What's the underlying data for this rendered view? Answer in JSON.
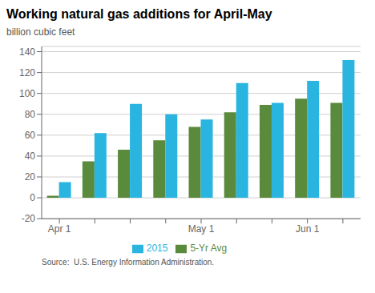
{
  "chart_data": {
    "type": "bar",
    "title": "Working natural gas additions for April-May",
    "ylabel": "billion cubic feet",
    "annotations": [
      "Source:  U.S. Energy Information Administration."
    ],
    "categories": [
      "Apr 1",
      null,
      null,
      null,
      "May 1",
      null,
      null,
      "Jun 1",
      null
    ],
    "series": [
      {
        "name": "5-Yr Avg",
        "color": "#5a8a3c",
        "values": [
          2,
          35,
          46,
          55,
          68,
          82,
          89,
          95,
          91
        ]
      },
      {
        "name": "2015",
        "color": "#29b5e0",
        "values": [
          15,
          62,
          90,
          80,
          75,
          110,
          91,
          112,
          132
        ]
      }
    ],
    "ylim": [
      -20,
      145
    ],
    "yticks": [
      -20,
      0,
      20,
      40,
      60,
      80,
      100,
      120,
      140
    ],
    "grid": true,
    "legend": "bottom"
  }
}
